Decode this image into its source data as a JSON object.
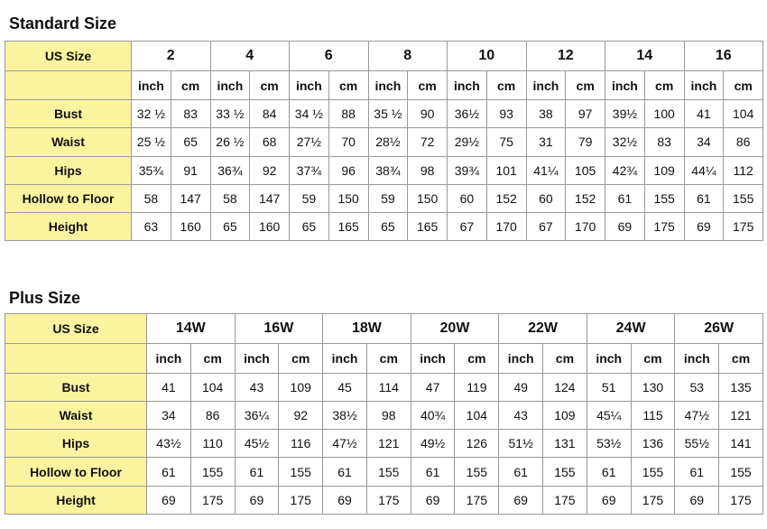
{
  "standard": {
    "title": "Standard Size",
    "header_label": "US Size",
    "sizes": [
      "2",
      "4",
      "6",
      "8",
      "10",
      "12",
      "14",
      "16"
    ],
    "units": [
      "inch",
      "cm"
    ],
    "rows": [
      {
        "label": "Bust",
        "values": [
          "32 ½",
          83,
          "33 ½",
          84,
          "34 ½",
          88,
          "35 ½",
          90,
          "36½",
          93,
          38,
          97,
          "39½",
          100,
          41,
          104
        ]
      },
      {
        "label": "Waist",
        "values": [
          "25 ½",
          65,
          "26 ½",
          68,
          "27½",
          70,
          "28½",
          72,
          "29½",
          75,
          31,
          79,
          "32½",
          83,
          34,
          86
        ]
      },
      {
        "label": "Hips",
        "values": [
          "35¾",
          91,
          "36¾",
          92,
          "37¾",
          96,
          "38¾",
          98,
          "39¾",
          101,
          "41¼",
          105,
          "42¾",
          109,
          "44¼",
          112
        ]
      },
      {
        "label": "Hollow to Floor",
        "values": [
          58,
          147,
          58,
          147,
          59,
          150,
          59,
          150,
          60,
          152,
          60,
          152,
          61,
          155,
          61,
          155
        ]
      },
      {
        "label": "Height",
        "values": [
          63,
          160,
          65,
          160,
          65,
          165,
          65,
          165,
          67,
          170,
          67,
          170,
          69,
          175,
          69,
          175
        ]
      }
    ]
  },
  "plus": {
    "title": "Plus Size",
    "header_label": "US Size",
    "sizes": [
      "14W",
      "16W",
      "18W",
      "20W",
      "22W",
      "24W",
      "26W"
    ],
    "units": [
      "inch",
      "cm"
    ],
    "rows": [
      {
        "label": "Bust",
        "values": [
          41,
          104,
          43,
          109,
          45,
          114,
          47,
          119,
          49,
          124,
          51,
          130,
          53,
          135
        ]
      },
      {
        "label": "Waist",
        "values": [
          34,
          86,
          "36¼",
          92,
          "38½",
          98,
          "40¾",
          104,
          43,
          109,
          "45¼",
          115,
          "47½",
          121
        ]
      },
      {
        "label": "Hips",
        "values": [
          "43½",
          110,
          "45½",
          116,
          "47½",
          121,
          "49½",
          126,
          "51½",
          131,
          "53½",
          136,
          "55½",
          141
        ]
      },
      {
        "label": "Hollow to Floor",
        "values": [
          61,
          155,
          61,
          155,
          61,
          155,
          61,
          155,
          61,
          155,
          61,
          155,
          61,
          155
        ]
      },
      {
        "label": "Height",
        "values": [
          69,
          175,
          69,
          175,
          69,
          175,
          69,
          175,
          69,
          175,
          69,
          175,
          69,
          175
        ]
      }
    ]
  }
}
